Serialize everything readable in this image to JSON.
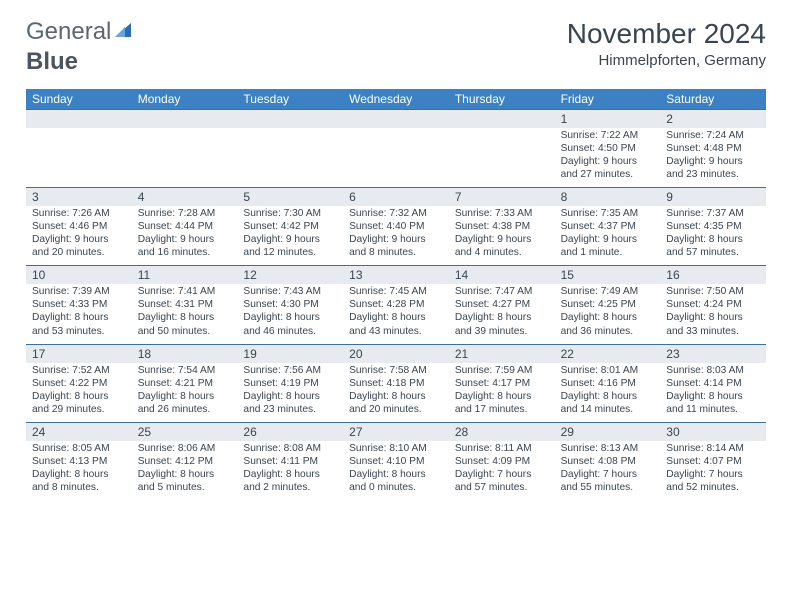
{
  "logo": {
    "text1": "General",
    "text2": "Blue"
  },
  "title": {
    "month": "November 2024",
    "location": "Himmelpforten, Germany"
  },
  "day_headers": [
    "Sunday",
    "Monday",
    "Tuesday",
    "Wednesday",
    "Thursday",
    "Friday",
    "Saturday"
  ],
  "colors": {
    "header_bar": "#3c81c4",
    "num_row_bg": "#e7ebef",
    "border": "#3a6fa5",
    "text": "#3a4550",
    "logo_sail": "#2b6db0"
  },
  "layout": {
    "cols": 7,
    "cell_font_size_pt": 10.2,
    "dow_font_size_pt": 12,
    "title_font_size_pt": 28
  },
  "weeks": [
    {
      "nums": [
        "",
        "",
        "",
        "",
        "",
        "1",
        "2"
      ],
      "details": [
        null,
        null,
        null,
        null,
        null,
        {
          "sunrise": "7:22 AM",
          "sunset": "4:50 PM",
          "daylight": "9 hours and 27 minutes."
        },
        {
          "sunrise": "7:24 AM",
          "sunset": "4:48 PM",
          "daylight": "9 hours and 23 minutes."
        }
      ]
    },
    {
      "nums": [
        "3",
        "4",
        "5",
        "6",
        "7",
        "8",
        "9"
      ],
      "details": [
        {
          "sunrise": "7:26 AM",
          "sunset": "4:46 PM",
          "daylight": "9 hours and 20 minutes."
        },
        {
          "sunrise": "7:28 AM",
          "sunset": "4:44 PM",
          "daylight": "9 hours and 16 minutes."
        },
        {
          "sunrise": "7:30 AM",
          "sunset": "4:42 PM",
          "daylight": "9 hours and 12 minutes."
        },
        {
          "sunrise": "7:32 AM",
          "sunset": "4:40 PM",
          "daylight": "9 hours and 8 minutes."
        },
        {
          "sunrise": "7:33 AM",
          "sunset": "4:38 PM",
          "daylight": "9 hours and 4 minutes."
        },
        {
          "sunrise": "7:35 AM",
          "sunset": "4:37 PM",
          "daylight": "9 hours and 1 minute."
        },
        {
          "sunrise": "7:37 AM",
          "sunset": "4:35 PM",
          "daylight": "8 hours and 57 minutes."
        }
      ]
    },
    {
      "nums": [
        "10",
        "11",
        "12",
        "13",
        "14",
        "15",
        "16"
      ],
      "details": [
        {
          "sunrise": "7:39 AM",
          "sunset": "4:33 PM",
          "daylight": "8 hours and 53 minutes."
        },
        {
          "sunrise": "7:41 AM",
          "sunset": "4:31 PM",
          "daylight": "8 hours and 50 minutes."
        },
        {
          "sunrise": "7:43 AM",
          "sunset": "4:30 PM",
          "daylight": "8 hours and 46 minutes."
        },
        {
          "sunrise": "7:45 AM",
          "sunset": "4:28 PM",
          "daylight": "8 hours and 43 minutes."
        },
        {
          "sunrise": "7:47 AM",
          "sunset": "4:27 PM",
          "daylight": "8 hours and 39 minutes."
        },
        {
          "sunrise": "7:49 AM",
          "sunset": "4:25 PM",
          "daylight": "8 hours and 36 minutes."
        },
        {
          "sunrise": "7:50 AM",
          "sunset": "4:24 PM",
          "daylight": "8 hours and 33 minutes."
        }
      ]
    },
    {
      "nums": [
        "17",
        "18",
        "19",
        "20",
        "21",
        "22",
        "23"
      ],
      "details": [
        {
          "sunrise": "7:52 AM",
          "sunset": "4:22 PM",
          "daylight": "8 hours and 29 minutes."
        },
        {
          "sunrise": "7:54 AM",
          "sunset": "4:21 PM",
          "daylight": "8 hours and 26 minutes."
        },
        {
          "sunrise": "7:56 AM",
          "sunset": "4:19 PM",
          "daylight": "8 hours and 23 minutes."
        },
        {
          "sunrise": "7:58 AM",
          "sunset": "4:18 PM",
          "daylight": "8 hours and 20 minutes."
        },
        {
          "sunrise": "7:59 AM",
          "sunset": "4:17 PM",
          "daylight": "8 hours and 17 minutes."
        },
        {
          "sunrise": "8:01 AM",
          "sunset": "4:16 PM",
          "daylight": "8 hours and 14 minutes."
        },
        {
          "sunrise": "8:03 AM",
          "sunset": "4:14 PM",
          "daylight": "8 hours and 11 minutes."
        }
      ]
    },
    {
      "nums": [
        "24",
        "25",
        "26",
        "27",
        "28",
        "29",
        "30"
      ],
      "details": [
        {
          "sunrise": "8:05 AM",
          "sunset": "4:13 PM",
          "daylight": "8 hours and 8 minutes."
        },
        {
          "sunrise": "8:06 AM",
          "sunset": "4:12 PM",
          "daylight": "8 hours and 5 minutes."
        },
        {
          "sunrise": "8:08 AM",
          "sunset": "4:11 PM",
          "daylight": "8 hours and 2 minutes."
        },
        {
          "sunrise": "8:10 AM",
          "sunset": "4:10 PM",
          "daylight": "8 hours and 0 minutes."
        },
        {
          "sunrise": "8:11 AM",
          "sunset": "4:09 PM",
          "daylight": "7 hours and 57 minutes."
        },
        {
          "sunrise": "8:13 AM",
          "sunset": "4:08 PM",
          "daylight": "7 hours and 55 minutes."
        },
        {
          "sunrise": "8:14 AM",
          "sunset": "4:07 PM",
          "daylight": "7 hours and 52 minutes."
        }
      ]
    }
  ]
}
